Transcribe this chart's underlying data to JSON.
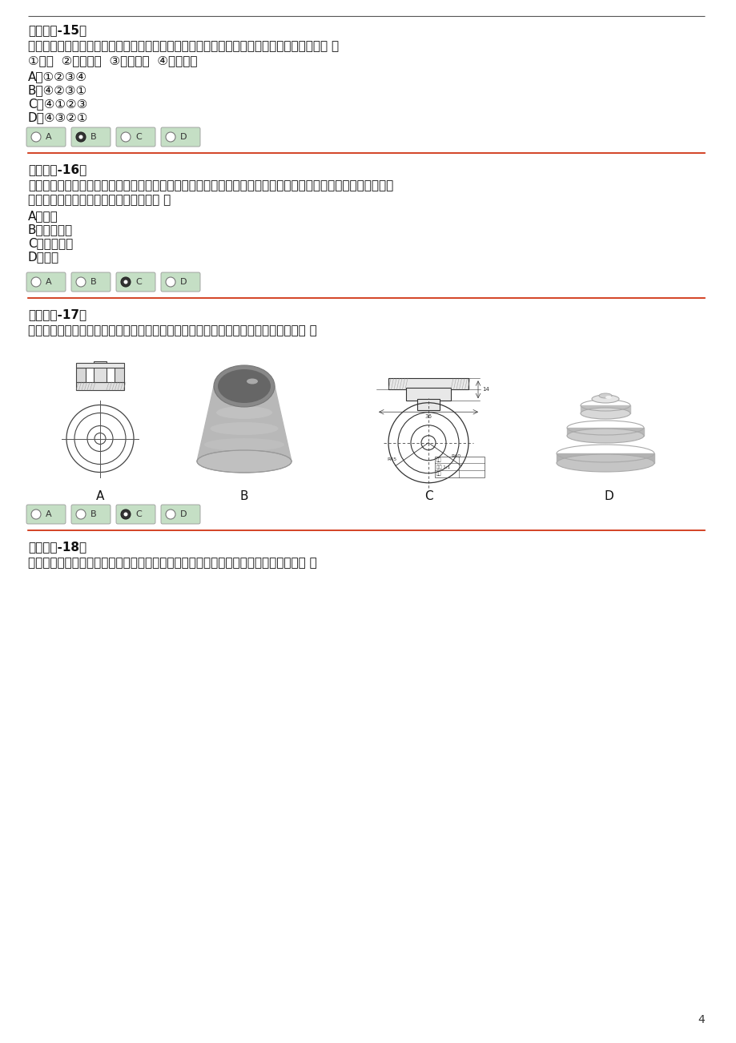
{
  "bg_color": "#ffffff",
  "page_number": "4",
  "top_line_color": "#555555",
  "red_line_color": "#cc2200",
  "text_color": "#111111",
  "title15": "《单选题-15》",
  "q15_line1": "汽车的车体都是由金属材料制作而成，制作工艺非常复杂，其中金属材料划线的一般步骤为（ ）",
  "q15_subline": "①冲眼  ②划尺寸线  ③划轮廓线  ④划出基准",
  "q15_opts": [
    "A．①②③④",
    "B．④②③①",
    "C．④①②③",
    "D．④③②①"
  ],
  "q15_ans": 1,
  "title16": "《单选题-16》",
  "q16_line1": "技术语言是一种在技术活动中进行信息交流的特有的语言形式，下列哪种技术语言是沟通设计和生产之间的桥梁，",
  "q16_line2": "是工程施工和产品加工制作的直接依据（ ）",
  "q16_opts": [
    "A．图表",
    "B．口头语言",
    "C．技术图样",
    "D．模型"
  ],
  "q16_ans": 2,
  "title17": "《单选题-17》",
  "q17_line1": "工作人员完成了一个零件的设计，并绘制了各种图样，下图中符合机械加工要求的是（ ）",
  "q17_labels": [
    "A",
    "B",
    "C",
    "D"
  ],
  "q17_ans": 2,
  "title18": "《单选题-18》",
  "q18_line1": "如图所示为某款台灯的主视图、俧视图以及部分尺寸标注。该台灯圆形底座的直径为（ ）",
  "font_size": 11,
  "radio_green": "#c5dfc5",
  "radio_border": "#999999"
}
